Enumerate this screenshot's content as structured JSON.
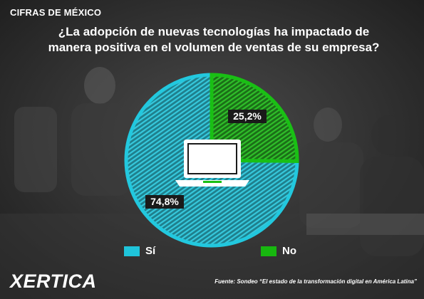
{
  "header": {
    "kicker": "CIFRAS DE MÉXICO",
    "question_line1": "¿La adopción de nuevas tecnologías ha impactado de",
    "question_line2": "manera positiva en el volumen de ventas de su empresa?"
  },
  "footer": {
    "source": "Fuente: Sondeo “El estado de la transformación digital en América Latina”",
    "logo_text": "XERTICA"
  },
  "colors": {
    "si": "#1fc4da",
    "no": "#17b70f",
    "label_bg": "#1a1a1a"
  },
  "icons": [
    "laptop-icon",
    "xertica-logo-mark"
  ],
  "chart_data": {
    "type": "pie",
    "title": "¿La adopción de nuevas tecnologías ha impactado de manera positiva en el volumen de ventas de su empresa?",
    "categories": [
      "Sí",
      "No"
    ],
    "values": [
      74.8,
      25.2
    ],
    "data_labels": [
      "74,8%",
      "25,2%"
    ],
    "legend_placement": "bottom"
  }
}
